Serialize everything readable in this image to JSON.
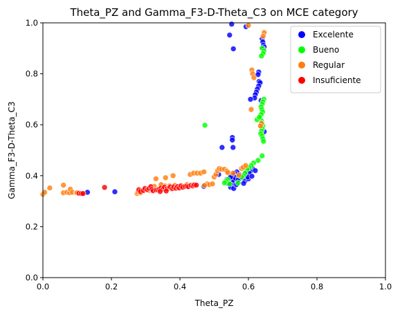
{
  "chart_data": {
    "type": "scatter",
    "title": "Theta_PZ and Gamma_F3-D-Theta_C3 on MCE category",
    "xlabel": "Theta_PZ",
    "ylabel": "Gamma_F3-D-Theta_C3",
    "xlim": [
      0,
      1
    ],
    "ylim": [
      0,
      1
    ],
    "xticks": [
      0.0,
      0.2,
      0.4,
      0.6,
      0.8,
      1.0
    ],
    "yticks": [
      0.0,
      0.2,
      0.4,
      0.6,
      0.8,
      1.0
    ],
    "xtick_labels": [
      "0.0",
      "0.2",
      "0.4",
      "0.6",
      "0.8",
      "1.0"
    ],
    "ytick_labels": [
      "0.0",
      "0.2",
      "0.4",
      "0.6",
      "0.8",
      "1.0"
    ],
    "grid": false,
    "legend_position": "top-right",
    "series": [
      {
        "name": "Excelente",
        "color": "#0000ff",
        "points": [
          [
            0.551,
            0.995
          ],
          [
            0.593,
            0.985
          ],
          [
            0.545,
            0.952
          ],
          [
            0.556,
            0.898
          ],
          [
            0.64,
            0.937
          ],
          [
            0.642,
            0.925
          ],
          [
            0.644,
            0.912
          ],
          [
            0.646,
            0.905
          ],
          [
            0.643,
            0.898
          ],
          [
            0.63,
            0.807
          ],
          [
            0.628,
            0.797
          ],
          [
            0.631,
            0.77
          ],
          [
            0.634,
            0.765
          ],
          [
            0.63,
            0.752
          ],
          [
            0.626,
            0.74
          ],
          [
            0.623,
            0.728
          ],
          [
            0.62,
            0.718
          ],
          [
            0.618,
            0.705
          ],
          [
            0.606,
            0.7
          ],
          [
            0.637,
            0.695
          ],
          [
            0.646,
            0.573
          ],
          [
            0.553,
            0.55
          ],
          [
            0.553,
            0.54
          ],
          [
            0.523,
            0.511
          ],
          [
            0.555,
            0.511
          ],
          [
            0.612,
            0.428
          ],
          [
            0.606,
            0.418
          ],
          [
            0.602,
            0.41
          ],
          [
            0.59,
            0.406
          ],
          [
            0.573,
            0.405
          ],
          [
            0.566,
            0.415
          ],
          [
            0.56,
            0.41
          ],
          [
            0.555,
            0.4
          ],
          [
            0.58,
            0.4
          ],
          [
            0.578,
            0.392
          ],
          [
            0.56,
            0.393
          ],
          [
            0.558,
            0.385
          ],
          [
            0.545,
            0.38
          ],
          [
            0.552,
            0.375
          ],
          [
            0.57,
            0.384
          ],
          [
            0.59,
            0.38
          ],
          [
            0.6,
            0.388
          ],
          [
            0.598,
            0.395
          ],
          [
            0.61,
            0.398
          ],
          [
            0.55,
            0.363
          ],
          [
            0.548,
            0.355
          ],
          [
            0.557,
            0.35
          ],
          [
            0.54,
            0.37
          ],
          [
            0.545,
            0.39
          ],
          [
            0.537,
            0.385
          ],
          [
            0.513,
            0.405
          ],
          [
            0.565,
            0.365
          ],
          [
            0.586,
            0.37
          ],
          [
            0.62,
            0.42
          ],
          [
            0.47,
            0.358
          ],
          [
            0.21,
            0.337
          ],
          [
            0.13,
            0.335
          ],
          [
            0.548,
            0.395
          ]
        ]
      },
      {
        "name": "Bueno",
        "color": "#00ff00",
        "points": [
          [
            0.64,
            0.9
          ],
          [
            0.645,
            0.89
          ],
          [
            0.643,
            0.88
          ],
          [
            0.638,
            0.87
          ],
          [
            0.645,
            0.7
          ],
          [
            0.642,
            0.69
          ],
          [
            0.64,
            0.68
          ],
          [
            0.637,
            0.67
          ],
          [
            0.639,
            0.66
          ],
          [
            0.641,
            0.65
          ],
          [
            0.637,
            0.64
          ],
          [
            0.634,
            0.625
          ],
          [
            0.638,
            0.615
          ],
          [
            0.64,
            0.605
          ],
          [
            0.642,
            0.595
          ],
          [
            0.64,
            0.585
          ],
          [
            0.638,
            0.575
          ],
          [
            0.636,
            0.565
          ],
          [
            0.64,
            0.555
          ],
          [
            0.642,
            0.545
          ],
          [
            0.644,
            0.535
          ],
          [
            0.64,
            0.478
          ],
          [
            0.473,
            0.598
          ],
          [
            0.628,
            0.46
          ],
          [
            0.615,
            0.45
          ],
          [
            0.608,
            0.44
          ],
          [
            0.602,
            0.43
          ],
          [
            0.596,
            0.425
          ],
          [
            0.59,
            0.41
          ],
          [
            0.585,
            0.4
          ],
          [
            0.58,
            0.395
          ],
          [
            0.54,
            0.385
          ],
          [
            0.535,
            0.378
          ],
          [
            0.53,
            0.372
          ],
          [
            0.545,
            0.368
          ],
          [
            0.57,
            0.372
          ],
          [
            0.625,
            0.62
          ],
          [
            0.632,
            0.63
          ]
        ]
      },
      {
        "name": "Regular",
        "color": "#ff7f0e",
        "points": [
          [
            0.6,
            0.99
          ],
          [
            0.646,
            0.962
          ],
          [
            0.643,
            0.948
          ],
          [
            0.61,
            0.815
          ],
          [
            0.612,
            0.8
          ],
          [
            0.616,
            0.785
          ],
          [
            0.608,
            0.66
          ],
          [
            0.638,
            0.605
          ],
          [
            0.635,
            0.595
          ],
          [
            0.0,
            0.327
          ],
          [
            0.005,
            0.335
          ],
          [
            0.02,
            0.352
          ],
          [
            0.06,
            0.333
          ],
          [
            0.06,
            0.363
          ],
          [
            0.07,
            0.335
          ],
          [
            0.078,
            0.333
          ],
          [
            0.08,
            0.347
          ],
          [
            0.086,
            0.335
          ],
          [
            0.098,
            0.333
          ],
          [
            0.1,
            0.333
          ],
          [
            0.117,
            0.33
          ],
          [
            0.275,
            0.33
          ],
          [
            0.278,
            0.336
          ],
          [
            0.285,
            0.333
          ],
          [
            0.292,
            0.34
          ],
          [
            0.295,
            0.345
          ],
          [
            0.31,
            0.342
          ],
          [
            0.323,
            0.345
          ],
          [
            0.325,
            0.358
          ],
          [
            0.33,
            0.388
          ],
          [
            0.34,
            0.35
          ],
          [
            0.348,
            0.36
          ],
          [
            0.352,
            0.35
          ],
          [
            0.356,
            0.36
          ],
          [
            0.358,
            0.392
          ],
          [
            0.365,
            0.352
          ],
          [
            0.37,
            0.36
          ],
          [
            0.375,
            0.348
          ],
          [
            0.38,
            0.4
          ],
          [
            0.385,
            0.362
          ],
          [
            0.39,
            0.355
          ],
          [
            0.4,
            0.36
          ],
          [
            0.41,
            0.355
          ],
          [
            0.42,
            0.365
          ],
          [
            0.43,
            0.405
          ],
          [
            0.44,
            0.41
          ],
          [
            0.45,
            0.41
          ],
          [
            0.46,
            0.41
          ],
          [
            0.47,
            0.415
          ],
          [
            0.48,
            0.368
          ],
          [
            0.486,
            0.365
          ],
          [
            0.495,
            0.368
          ],
          [
            0.5,
            0.395
          ],
          [
            0.505,
            0.405
          ],
          [
            0.51,
            0.42
          ],
          [
            0.515,
            0.428
          ],
          [
            0.522,
            0.425
          ],
          [
            0.53,
            0.425
          ],
          [
            0.537,
            0.418
          ],
          [
            0.54,
            0.412
          ],
          [
            0.555,
            0.41
          ],
          [
            0.572,
            0.402
          ],
          [
            0.58,
            0.428
          ],
          [
            0.585,
            0.433
          ],
          [
            0.592,
            0.44
          ],
          [
            0.472,
            0.362
          ],
          [
            0.44,
            0.362
          ],
          [
            0.345,
            0.365
          ]
        ]
      },
      {
        "name": "Insuficiente",
        "color": "#ff0000",
        "points": [
          [
            0.105,
            0.331
          ],
          [
            0.112,
            0.33
          ],
          [
            0.117,
            0.33
          ],
          [
            0.18,
            0.354
          ],
          [
            0.28,
            0.345
          ],
          [
            0.285,
            0.338
          ],
          [
            0.293,
            0.342
          ],
          [
            0.298,
            0.35
          ],
          [
            0.305,
            0.345
          ],
          [
            0.31,
            0.35
          ],
          [
            0.315,
            0.357
          ],
          [
            0.318,
            0.346
          ],
          [
            0.322,
            0.341
          ],
          [
            0.33,
            0.344
          ],
          [
            0.335,
            0.345
          ],
          [
            0.34,
            0.348
          ],
          [
            0.345,
            0.352
          ],
          [
            0.35,
            0.347
          ],
          [
            0.355,
            0.355
          ],
          [
            0.362,
            0.349
          ],
          [
            0.368,
            0.352
          ],
          [
            0.372,
            0.356
          ],
          [
            0.378,
            0.35
          ],
          [
            0.382,
            0.356
          ],
          [
            0.388,
            0.351
          ],
          [
            0.393,
            0.357
          ],
          [
            0.398,
            0.352
          ],
          [
            0.403,
            0.36
          ],
          [
            0.408,
            0.355
          ],
          [
            0.415,
            0.358
          ],
          [
            0.42,
            0.359
          ],
          [
            0.425,
            0.357
          ],
          [
            0.432,
            0.362
          ],
          [
            0.438,
            0.36
          ],
          [
            0.442,
            0.364
          ],
          [
            0.448,
            0.363
          ],
          [
            0.36,
            0.34
          ],
          [
            0.342,
            0.338
          ]
        ]
      }
    ]
  }
}
